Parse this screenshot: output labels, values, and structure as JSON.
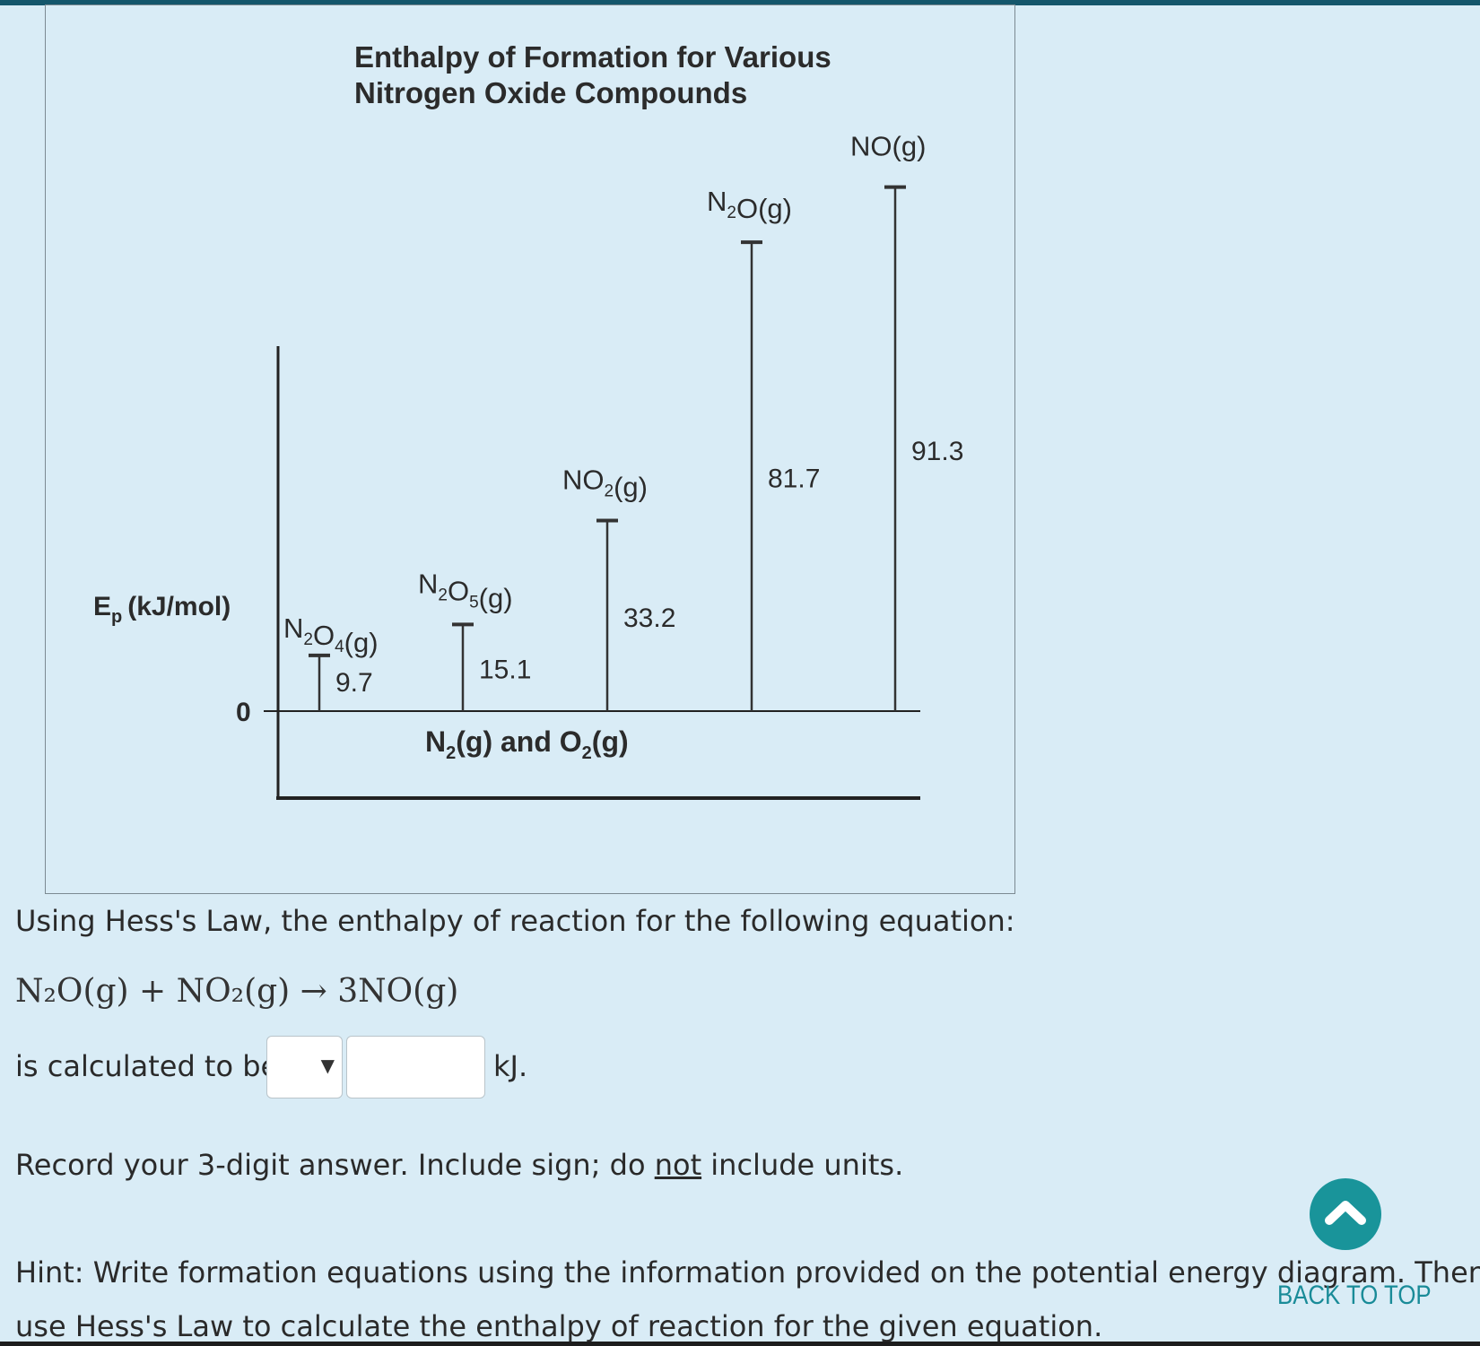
{
  "diagram": {
    "title_line1": "Enthalpy of Formation for Various",
    "title_line2": "Nitrogen Oxide Compounds",
    "y_axis_label": "E",
    "y_axis_label_sub": "p",
    "y_axis_unit": "(kJ/mol)",
    "zero_label": "0",
    "baseline_label": {
      "n2": "N",
      "n2_sub": "2",
      "n2_suffix": "(g) and O",
      "o2_sub": "2",
      "o2_suffix": "(g)"
    },
    "compounds": [
      {
        "formula_a": "N",
        "sub_a": "2",
        "formula_b": "O",
        "sub_b": "4",
        "state": "(g)",
        "value_label": "9.7",
        "value": 9.7
      },
      {
        "formula_a": "N",
        "sub_a": "2",
        "formula_b": "O",
        "sub_b": "5",
        "state": "(g)",
        "value_label": "15.1",
        "value": 15.1
      },
      {
        "formula_a": "NO",
        "sub_a": "2",
        "formula_b": "",
        "sub_b": "",
        "state": "(g)",
        "value_label": "33.2",
        "value": 33.2
      },
      {
        "formula_a": "N",
        "sub_a": "2",
        "formula_b": "O",
        "sub_b": "",
        "state": "(g)",
        "value_label": "81.7",
        "value": 81.7
      },
      {
        "formula_a": "NO",
        "sub_a": "",
        "formula_b": "",
        "sub_b": "",
        "state": "(g)",
        "value_label": "91.3",
        "value": 91.3
      }
    ]
  },
  "question": {
    "intro": "Using Hess's Law, the enthalpy of reaction for the following equation:",
    "equation": "N₂O(g) + NO₂(g) → 3NO(g)",
    "calc_prefix": "is calculated to be",
    "select_arrow": "▼",
    "answer_value": "",
    "unit": "kJ.",
    "record_prefix": "Record your 3-digit answer. Include sign; do ",
    "record_emphasis": "not",
    "record_suffix": " include units.",
    "hint_line1": "Hint: Write formation equations using the information provided on the potential energy diagram. Then",
    "hint_line2": "use Hess's Law to calculate the enthalpy of reaction for the given equation."
  },
  "back_to_top": {
    "label": "BACK TO TOP",
    "icon": "chevron-up-icon",
    "color": "#19949a"
  }
}
